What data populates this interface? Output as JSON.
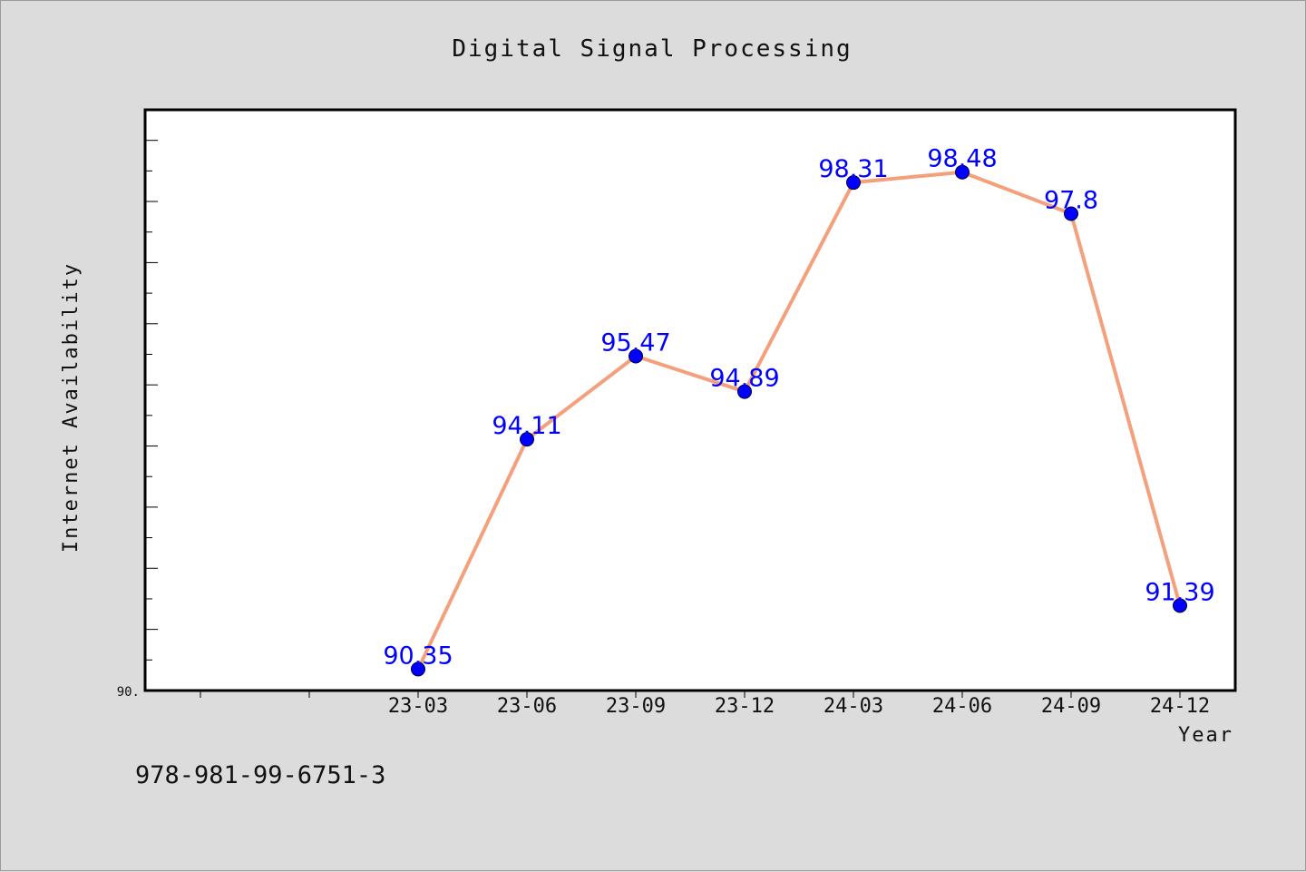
{
  "chart_data": {
    "type": "line",
    "title": "Digital Signal Processing",
    "xlabel": "Year",
    "ylabel": "Internet Availability",
    "categories": [
      "23-03",
      "23-06",
      "23-09",
      "23-12",
      "24-03",
      "24-06",
      "24-09",
      "24-12"
    ],
    "series": [
      {
        "values": [
          90.35,
          94.11,
          95.47,
          94.89,
          98.31,
          98.48,
          97.8,
          91.39
        ],
        "labels": [
          "90.35",
          "94.11",
          "95.47",
          "94.89",
          "98.31",
          "98.48",
          "97.8",
          "91.39"
        ],
        "line_color": "#f4a07c",
        "marker_color": "#0000ff"
      }
    ],
    "ylim": [
      90.0,
      99.5
    ],
    "ytick_label": "90.",
    "grid": false,
    "legend": "none"
  },
  "footer": {
    "isbn": "978-981-99-6751-3"
  },
  "colors": {
    "background": "#dcdcdc",
    "plot_background": "#ffffff",
    "frame": "#000000"
  }
}
